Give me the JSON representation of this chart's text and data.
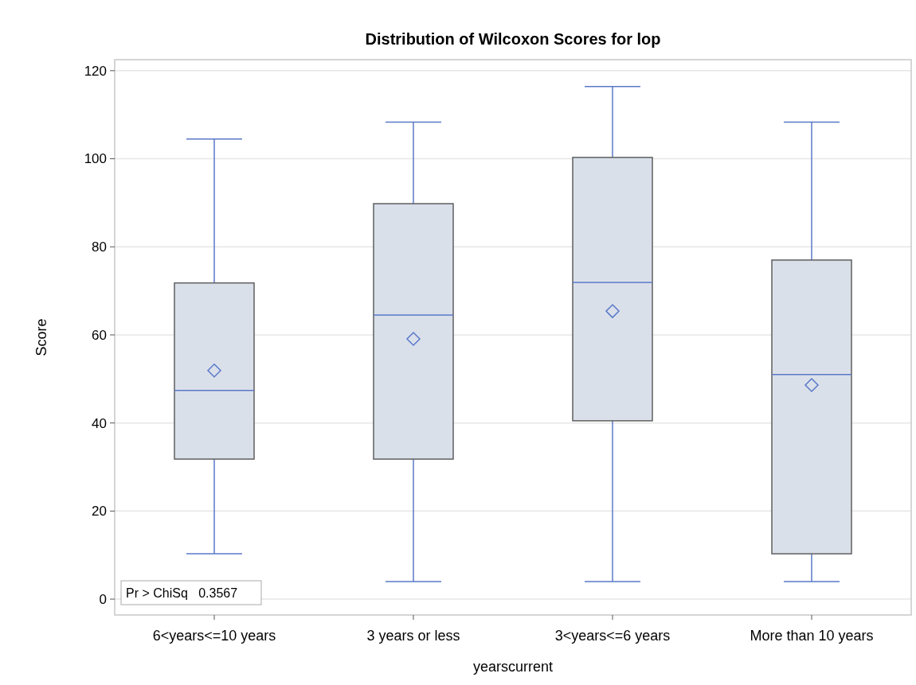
{
  "chart_data": {
    "type": "box",
    "title": "Distribution of Wilcoxon Scores for lop",
    "xlabel": "yearscurrent",
    "ylabel": "Score",
    "categories": [
      "6<years<=10 years",
      "3 years or less",
      "3<years<=6 years",
      "More than 10 years"
    ],
    "color": "#dae0ea",
    "boxes": [
      {
        "low": 10.3,
        "q1": 31.8,
        "median": 47.4,
        "q3": 71.8,
        "high": 104.5,
        "mean": 51.9
      },
      {
        "low": 4,
        "q1": 31.8,
        "median": 64.5,
        "q3": 89.8,
        "high": 108.3,
        "mean": 59.1
      },
      {
        "low": 4,
        "q1": 40.5,
        "median": 71.9,
        "q3": 100.3,
        "high": 116.4,
        "mean": 65.4
      },
      {
        "low": 4,
        "q1": 10.3,
        "median": 51,
        "q3": 77,
        "high": 108.3,
        "mean": 48.6
      }
    ],
    "ylim": [
      -3.6,
      122.5
    ],
    "yticks": [
      0,
      20,
      40,
      60,
      80,
      100,
      120
    ],
    "grid": "y",
    "annotations": [
      "Pr > ChiSq   0.3567"
    ]
  }
}
